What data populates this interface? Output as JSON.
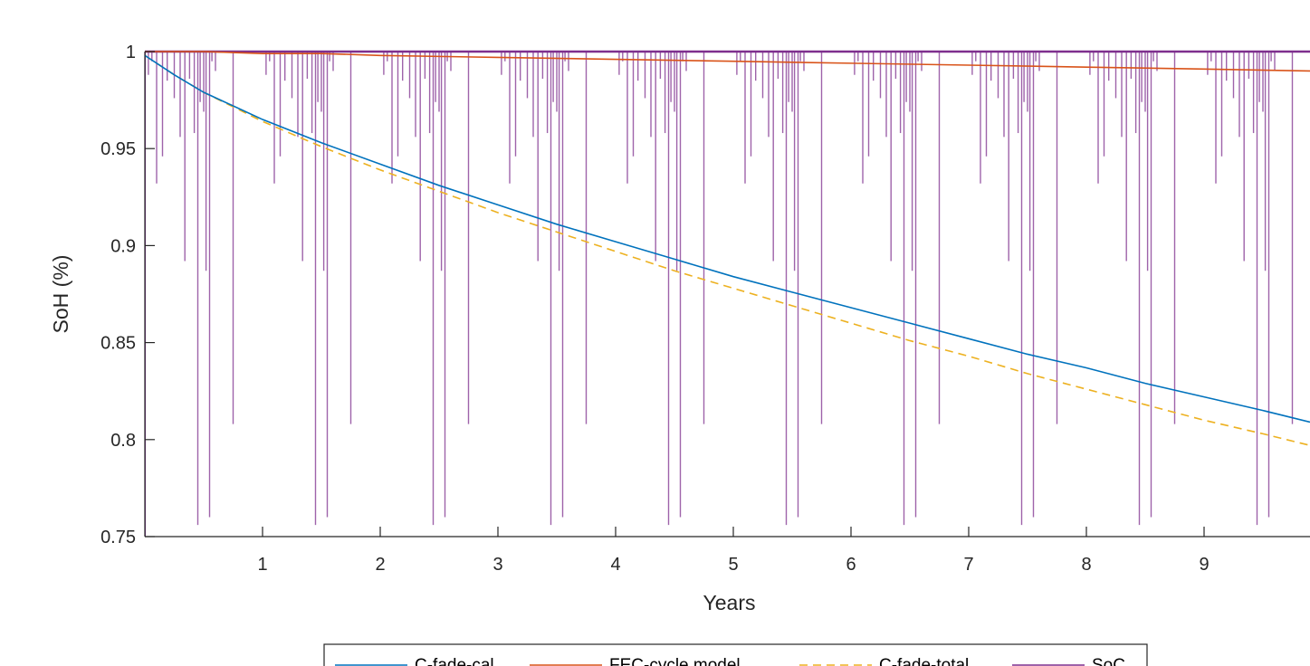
{
  "chart_data": {
    "type": "line",
    "title": "",
    "xlabel": "Years",
    "ylabel": "SoH (%)",
    "xlim": [
      0,
      9.9
    ],
    "ylim": [
      0.75,
      1.0
    ],
    "xticks": [
      1,
      2,
      3,
      4,
      5,
      6,
      7,
      8,
      9
    ],
    "yticks": [
      0.75,
      0.8,
      0.85,
      0.9,
      0.95,
      1
    ],
    "ytick_labels": [
      "0.75",
      "0.8",
      "0.85",
      "0.9",
      "0.95",
      "1"
    ],
    "grid": false,
    "legend_position": "bottom-outside",
    "series": [
      {
        "name": "C-fade-cal",
        "color": "#0072BD",
        "style": "solid",
        "x": [
          0,
          0.25,
          0.5,
          1,
          1.5,
          2,
          2.5,
          3,
          3.5,
          4,
          4.5,
          5,
          5.5,
          6,
          6.5,
          7,
          7.5,
          8,
          8.5,
          9,
          9.5,
          9.9
        ],
        "y": [
          0.998,
          0.988,
          0.979,
          0.965,
          0.953,
          0.942,
          0.931,
          0.921,
          0.911,
          0.902,
          0.893,
          0.884,
          0.876,
          0.868,
          0.86,
          0.852,
          0.844,
          0.837,
          0.829,
          0.822,
          0.815,
          0.809
        ]
      },
      {
        "name": "FEC-cycle model",
        "color": "#D95319",
        "style": "solid",
        "x": [
          0,
          0.5,
          1,
          1.5,
          2,
          3,
          4,
          5,
          6,
          7,
          8,
          9,
          9.9
        ],
        "y": [
          1.0,
          1.0,
          0.999,
          0.999,
          0.998,
          0.997,
          0.996,
          0.995,
          0.994,
          0.993,
          0.992,
          0.991,
          0.99
        ]
      },
      {
        "name": "C-fade-total",
        "color": "#EDB120",
        "style": "dashed",
        "x": [
          0,
          0.25,
          0.5,
          1,
          1.5,
          2,
          2.5,
          3,
          3.5,
          4,
          4.5,
          5,
          5.5,
          6,
          6.5,
          7,
          7.5,
          8,
          8.5,
          9,
          9.5,
          9.9
        ],
        "y": [
          0.998,
          0.988,
          0.979,
          0.964,
          0.951,
          0.939,
          0.928,
          0.917,
          0.907,
          0.897,
          0.887,
          0.878,
          0.869,
          0.86,
          0.851,
          0.843,
          0.834,
          0.826,
          0.818,
          0.81,
          0.803,
          0.797
        ]
      },
      {
        "name": "SoC",
        "color": "#7E2F8E",
        "style": "solid",
        "baseline": 1.0,
        "dip_offsets": [
          0.03,
          0.06,
          0.1,
          0.15,
          0.19,
          0.25,
          0.3,
          0.34,
          0.38,
          0.42,
          0.45,
          0.47,
          0.5,
          0.52,
          0.55,
          0.57,
          0.6,
          0.75
        ],
        "dip_depths": [
          0.988,
          0.995,
          0.932,
          0.946,
          0.985,
          0.976,
          0.956,
          0.892,
          0.986,
          0.958,
          0.756,
          0.974,
          0.969,
          0.887,
          0.76,
          0.995,
          0.99,
          0.808
        ],
        "cycle_period_years": 1.0,
        "cycles": 10
      }
    ]
  }
}
